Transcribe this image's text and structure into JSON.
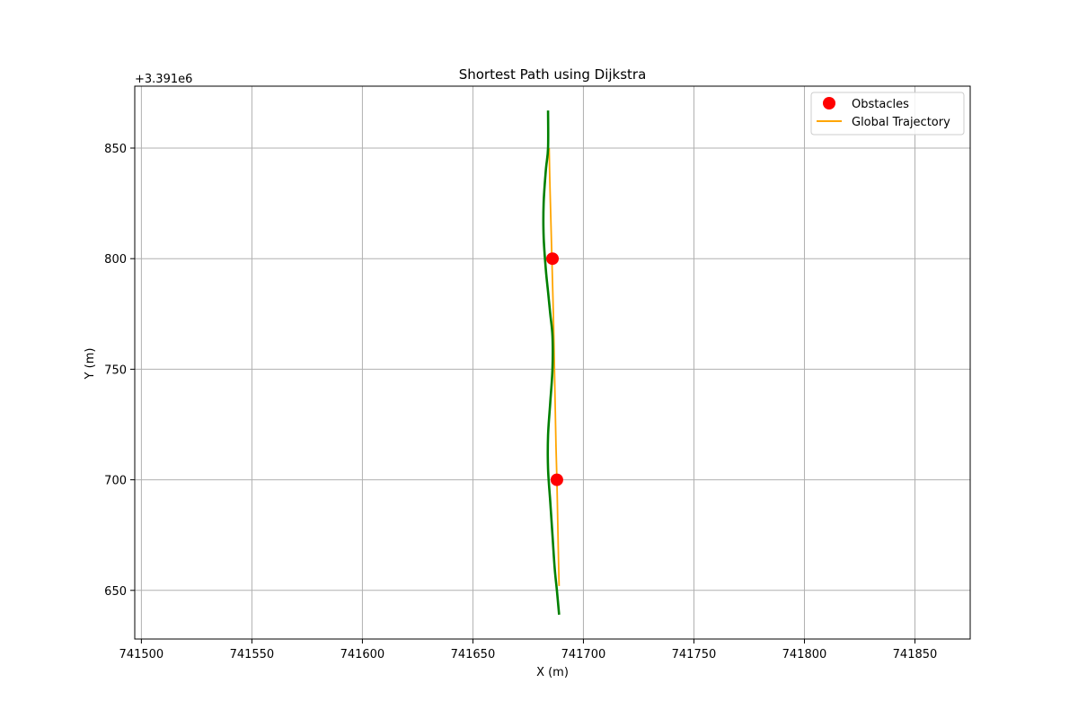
{
  "chart_data": {
    "type": "line",
    "title": "Shortest Path using Dijkstra",
    "xlabel": "X (m)",
    "ylabel": "Y (m)",
    "y_offset_label": "+3.391e6",
    "xlim": [
      741497,
      741875
    ],
    "ylim": [
      628,
      878
    ],
    "xticks": [
      741500,
      741550,
      741600,
      741650,
      741700,
      741750,
      741800,
      741850
    ],
    "xtick_labels": [
      "741500",
      "741550",
      "741600",
      "741650",
      "741700",
      "741750",
      "741800",
      "741850"
    ],
    "yticks": [
      650,
      700,
      750,
      800,
      850
    ],
    "ytick_labels": [
      "650",
      "700",
      "750",
      "800",
      "850"
    ],
    "grid": true,
    "legend_position": "top-right",
    "series": [
      {
        "name": "Obstacles",
        "kind": "scatter",
        "color": "#ff0000",
        "x": [
          741686,
          741688
        ],
        "y": [
          800,
          700
        ]
      },
      {
        "name": "Global Trajectory",
        "kind": "line",
        "color": "#ffa500",
        "x": [
          741684.5,
          741684.8,
          741685.2,
          741685.6,
          741686.0,
          741686.4,
          741686.7,
          741687.0,
          741687.3,
          741687.6,
          741688.0,
          741688.3,
          741688.6,
          741689.0
        ],
        "y": [
          850,
          835,
          820,
          805,
          790,
          775,
          760,
          745,
          730,
          715,
          700,
          685,
          670,
          652
        ]
      },
      {
        "kind": "line",
        "color": "#008000",
        "x": [
          741684,
          741684,
          741683,
          741682,
          741682,
          741683,
          741684,
          741685,
          741686,
          741686,
          741685,
          741684,
          741684,
          741685,
          741686,
          741687,
          741688,
          741689
        ],
        "y": [
          867,
          850,
          840,
          825,
          810,
          795,
          785,
          775,
          765,
          750,
          735,
          720,
          705,
          690,
          675,
          660,
          650,
          639
        ]
      }
    ]
  }
}
